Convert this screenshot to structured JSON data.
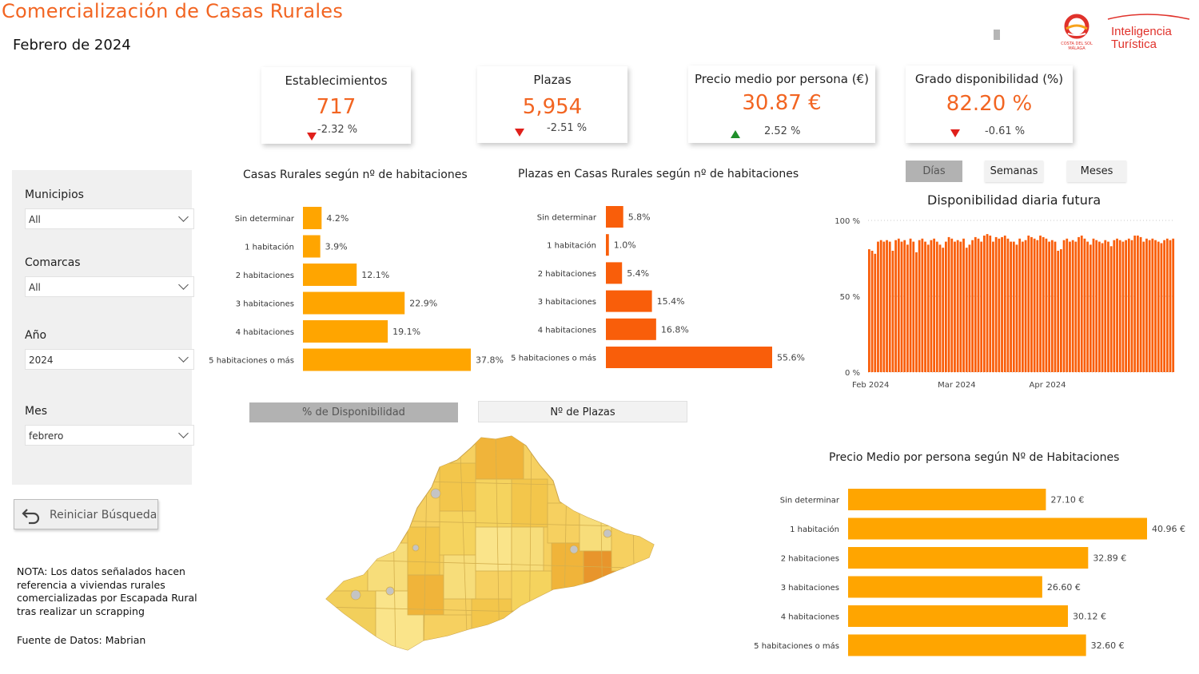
{
  "header": {
    "title": "Comercialización de Casas Rurales",
    "subtitle": "Febrero de 2024",
    "logo_left_text": "COSTA DEL SOL MÁLAGA",
    "logo_right_line1": "Inteligencia",
    "logo_right_line2": "Turística"
  },
  "kpis": [
    {
      "title": "Establecimientos",
      "value": "717",
      "delta": "-2.32 %",
      "trend": "down"
    },
    {
      "title": "Plazas",
      "value": "5,954",
      "delta": "-2.51 %",
      "trend": "down"
    },
    {
      "title": "Precio medio por persona (€)",
      "value": "30.87 €",
      "delta": "2.52 %",
      "trend": "up"
    },
    {
      "title": "Grado disponibilidad (%)",
      "value": "82.20 %",
      "delta": "-0.61 %",
      "trend": "down"
    }
  ],
  "filters": {
    "municipios": {
      "label": "Municipios",
      "value": "All"
    },
    "comarcas": {
      "label": "Comarcas",
      "value": "All"
    },
    "anio": {
      "label": "Año",
      "value": "2024"
    },
    "mes": {
      "label": "Mes",
      "value": "febrero"
    }
  },
  "reset_label": "Reiniciar Búsqueda",
  "note": "NOTA: Los datos señalados hacen referencia a viviendas rurales comercializadas por Escapada Rural tras realizar un scrapping",
  "source": "Fuente de Datos: Mabrian",
  "time_toggle": [
    "Días",
    "Semanas",
    "Meses"
  ],
  "map_toggle": [
    "% de Disponibilidad",
    "Nº de Plazas"
  ],
  "colors": {
    "accent": "#f26522",
    "bar_yellow": "#ffa500",
    "bar_orange": "#f95e0a",
    "trend_down": "#e0201b",
    "trend_up": "#1f8f2a"
  },
  "chart_data": [
    {
      "type": "bar",
      "orientation": "horizontal",
      "title": "Casas Rurales según nº de habitaciones",
      "categories": [
        "Sin determinar",
        "1 habitación",
        "2 habitaciones",
        "3 habitaciones",
        "4 habitaciones",
        "5 habitaciones o más"
      ],
      "values": [
        4.2,
        3.9,
        12.1,
        22.9,
        19.1,
        37.8
      ],
      "labels": [
        "4.2%",
        "3.9%",
        "12.1%",
        "22.9%",
        "19.1%",
        "37.8%"
      ]
    },
    {
      "type": "bar",
      "orientation": "horizontal",
      "title": "Plazas en Casas Rurales según nº de habitaciones",
      "categories": [
        "Sin determinar",
        "1 habitación",
        "2 habitaciones",
        "3 habitaciones",
        "4 habitaciones",
        "5 habitaciones o más"
      ],
      "values": [
        5.8,
        1.0,
        5.4,
        15.4,
        16.8,
        55.6
      ],
      "labels": [
        "5.8%",
        "1.0%",
        "5.4%",
        "15.4%",
        "16.8%",
        "55.6%"
      ]
    },
    {
      "type": "bar",
      "title": "Disponibilidad diaria futura",
      "x_ticks": [
        "Feb 2024",
        "Mar 2024",
        "Apr 2024"
      ],
      "y_ticks": [
        "0 %",
        "50 %",
        "100 %"
      ],
      "ylim": [
        0,
        100
      ],
      "values": [
        81,
        80,
        78,
        86,
        87,
        86,
        87,
        86,
        80,
        87,
        88,
        86,
        87,
        84,
        88,
        86,
        79,
        87,
        88,
        86,
        84,
        87,
        88,
        86,
        84,
        82,
        86,
        89,
        88,
        86,
        87,
        86,
        88,
        82,
        84,
        87,
        89,
        88,
        86,
        90,
        91,
        90,
        86,
        89,
        88,
        89,
        90,
        88,
        86,
        86,
        84,
        88,
        86,
        87,
        90,
        89,
        88,
        87,
        90,
        89,
        88,
        86,
        87,
        86,
        80,
        81,
        87,
        88,
        86,
        87,
        86,
        89,
        90,
        88,
        86,
        84,
        88,
        87,
        86,
        85,
        87,
        86,
        83,
        87,
        88,
        87,
        86,
        87,
        88,
        87,
        90,
        90,
        89,
        86,
        88,
        87,
        88,
        87,
        86,
        85,
        87,
        88,
        87,
        88
      ],
      "grid": true
    },
    {
      "type": "bar",
      "orientation": "horizontal",
      "title": "Precio Medio por persona según Nº de Habitaciones",
      "categories": [
        "Sin determinar",
        "1 habitación",
        "2 habitaciones",
        "3 habitaciones",
        "4 habitaciones",
        "5 habitaciones o más"
      ],
      "values": [
        27.1,
        40.96,
        32.89,
        26.6,
        30.12,
        32.6
      ],
      "labels": [
        "27.10 €",
        "40.96 €",
        "32.89 €",
        "26.60 €",
        "30.12 €",
        "32.60 €"
      ]
    }
  ]
}
